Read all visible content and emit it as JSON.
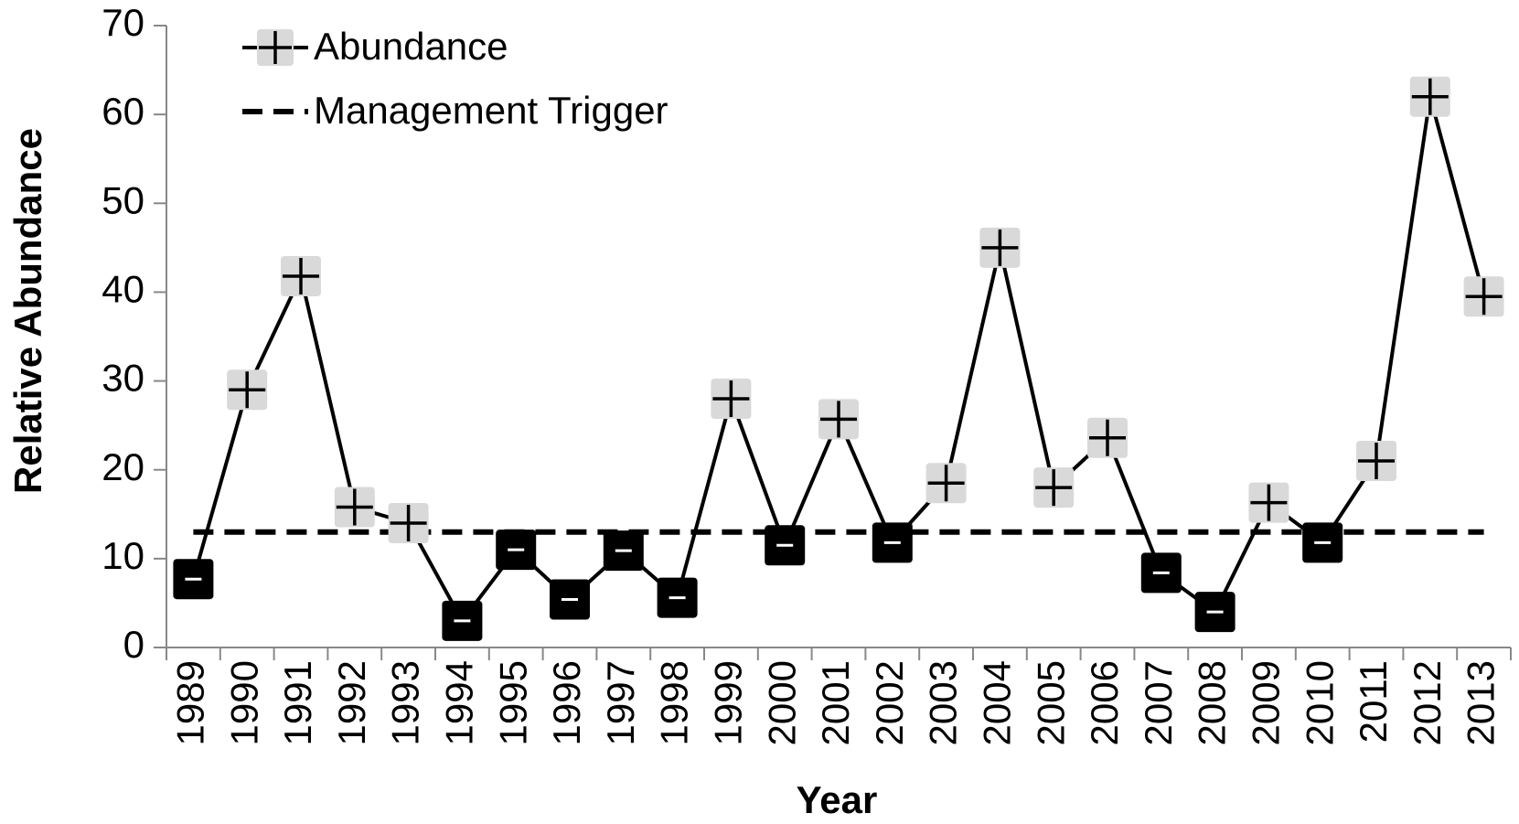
{
  "chart_data": {
    "type": "line",
    "x_label": "Year",
    "y_label": "Relative Abundance",
    "categories": [
      "1989",
      "1990",
      "1991",
      "1992",
      "1993",
      "1994",
      "1995",
      "1996",
      "1997",
      "1998",
      "1999",
      "2000",
      "2001",
      "2002",
      "2003",
      "2004",
      "2005",
      "2006",
      "2007",
      "2008",
      "2009",
      "2010",
      "2011",
      "2012",
      "2013"
    ],
    "series": [
      {
        "name": "Abundance",
        "color": "#000000",
        "values": [
          7.7,
          29,
          41.8,
          15.8,
          14,
          3,
          11,
          5.4,
          10.9,
          5.6,
          28,
          11.5,
          25.7,
          11.8,
          18.5,
          45,
          18,
          23.6,
          8.4,
          4,
          16.3,
          11.8,
          21,
          62,
          39.5
        ]
      }
    ],
    "reference_line": {
      "name": "Management Trigger",
      "value": 13,
      "color": "#000000"
    },
    "marker_fill_above": "#d9d9d9",
    "marker_fill_below": "#000000",
    "ylim": [
      0,
      70
    ],
    "yticks": [
      0,
      10,
      20,
      30,
      40,
      50,
      60,
      70
    ],
    "legend": "upper left"
  }
}
